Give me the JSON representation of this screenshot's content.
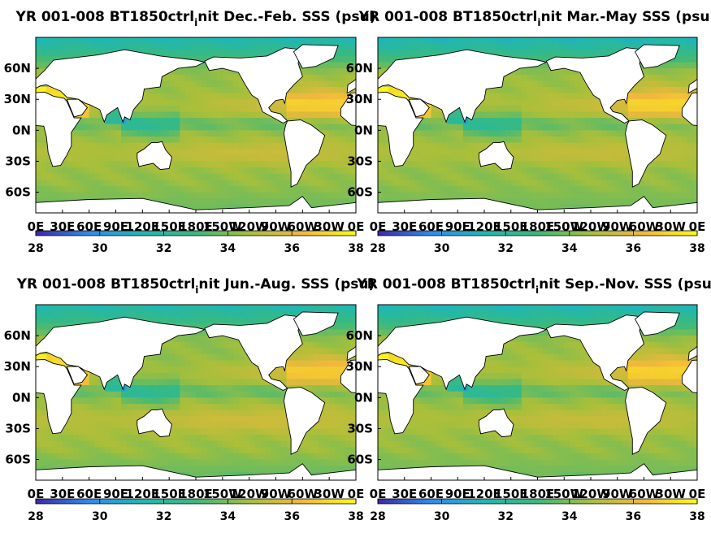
{
  "colormap": [
    "#3e26a8",
    "#2d8cf3",
    "#1fb8b3",
    "#3ab97c",
    "#a7bf3b",
    "#f2b83c",
    "#f9fb15"
  ],
  "land_color": "#ffffff",
  "chart_data": [
    {
      "type": "heatmap",
      "title_pre": "YR 001-008 BT1850ctrl",
      "title_sub": "i",
      "title_post": "nit Dec.-Feb. SSS (psu)",
      "lon_ticks": [
        "0E",
        "30E",
        "60E",
        "90E",
        "120E",
        "150E",
        "180E",
        "150W",
        "120W",
        "90W",
        "60W",
        "30W",
        "0E"
      ],
      "lat_ticks": [
        "60N",
        "30N",
        "0N",
        "30S",
        "60S"
      ],
      "colorbar_ticks": [
        "28",
        "30",
        "32",
        "34",
        "36",
        "38"
      ],
      "clim": [
        28,
        38
      ],
      "xlim": [
        0,
        360
      ],
      "ylim": [
        -80,
        90
      ],
      "season": "DJF"
    },
    {
      "type": "heatmap",
      "title_pre": "YR 001-008 BT1850ctrl",
      "title_sub": "i",
      "title_post": "nit Mar.-May SSS (psu)",
      "lon_ticks": [
        "0E",
        "30E",
        "60E",
        "90E",
        "120E",
        "150E",
        "180E",
        "150W",
        "120W",
        "90W",
        "60W",
        "30W",
        "0E"
      ],
      "lat_ticks": [
        "60N",
        "30N",
        "0N",
        "30S",
        "60S"
      ],
      "colorbar_ticks": [
        "28",
        "30",
        "32",
        "34",
        "36",
        "38"
      ],
      "clim": [
        28,
        38
      ],
      "xlim": [
        0,
        360
      ],
      "ylim": [
        -80,
        90
      ],
      "season": "MAM"
    },
    {
      "type": "heatmap",
      "title_pre": "YR 001-008 BT1850ctrl",
      "title_sub": "i",
      "title_post": "nit Jun.-Aug. SSS (psu)",
      "lon_ticks": [
        "0E",
        "30E",
        "60E",
        "90E",
        "120E",
        "150E",
        "180E",
        "150W",
        "120W",
        "90W",
        "60W",
        "30W",
        "0E"
      ],
      "lat_ticks": [
        "60N",
        "30N",
        "0N",
        "30S",
        "60S"
      ],
      "colorbar_ticks": [
        "28",
        "30",
        "32",
        "34",
        "36",
        "38"
      ],
      "clim": [
        28,
        38
      ],
      "xlim": [
        0,
        360
      ],
      "ylim": [
        -80,
        90
      ],
      "season": "JJA"
    },
    {
      "type": "heatmap",
      "title_pre": "YR 001-008 BT1850ctrl",
      "title_sub": "i",
      "title_post": "nit Sep.-Nov. SSS (psu)",
      "lon_ticks": [
        "0E",
        "30E",
        "60E",
        "90E",
        "120E",
        "150E",
        "180E",
        "150W",
        "120W",
        "90W",
        "60W",
        "30W",
        "0E"
      ],
      "lat_ticks": [
        "60N",
        "30N",
        "0N",
        "30S",
        "60S"
      ],
      "colorbar_ticks": [
        "28",
        "30",
        "32",
        "34",
        "36",
        "38"
      ],
      "clim": [
        28,
        38
      ],
      "xlim": [
        0,
        360
      ],
      "ylim": [
        -80,
        90
      ],
      "season": "SON"
    }
  ]
}
